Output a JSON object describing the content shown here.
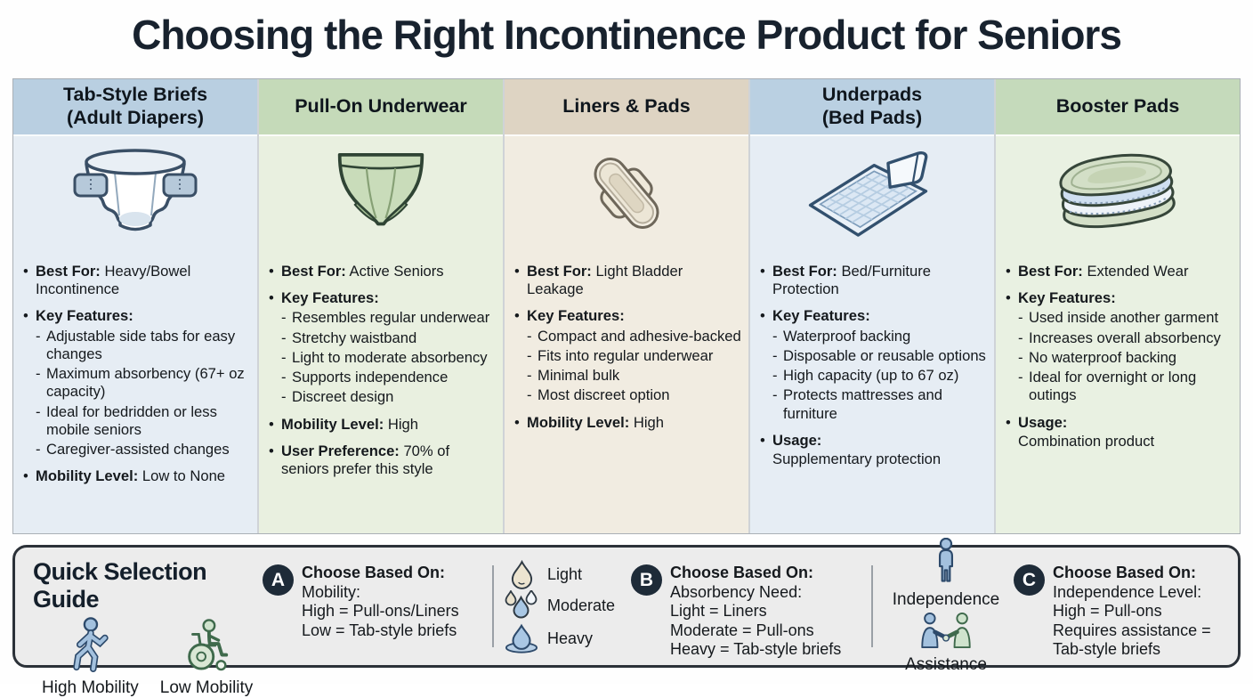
{
  "title": "Choosing the Right Incontinence Product for Seniors",
  "columns": [
    {
      "id": "tab-style-briefs",
      "header_line1": "Tab-Style Briefs",
      "header_line2": "(Adult Diapers)",
      "icon": "adult-diaper-icon",
      "header_color": "#b9cfe1",
      "body_color": "#e6edf4",
      "blocks": [
        {
          "type": "bullet",
          "label": "Best For:",
          "text": "Heavy/Bowel Incontinence"
        },
        {
          "type": "bullet",
          "label": "Key Features:",
          "text": ""
        },
        {
          "type": "dash",
          "text": "Adjustable side tabs for easy changes"
        },
        {
          "type": "dash",
          "text": "Maximum absorbency (67+ oz capacity)"
        },
        {
          "type": "dash",
          "text": "Ideal for bedridden or less mobile seniors"
        },
        {
          "type": "dash",
          "text": "Caregiver-assisted changes"
        },
        {
          "type": "bullet",
          "label": "Mobility Level:",
          "text": "Low to None"
        }
      ]
    },
    {
      "id": "pull-on-underwear",
      "header_line1": "Pull-On Underwear",
      "header_line2": "",
      "icon": "pull-on-underwear-icon",
      "header_color": "#c5dab9",
      "body_color": "#e9f0e0",
      "blocks": [
        {
          "type": "bullet",
          "label": "Best For:",
          "text": "Active Seniors"
        },
        {
          "type": "bullet",
          "label": "Key Features:",
          "text": ""
        },
        {
          "type": "dash",
          "text": "Resembles regular underwear"
        },
        {
          "type": "dash",
          "text": "Stretchy waistband"
        },
        {
          "type": "dash",
          "text": "Light to moderate absorbency"
        },
        {
          "type": "dash",
          "text": "Supports independence"
        },
        {
          "type": "dash",
          "text": "Discreet design"
        },
        {
          "type": "bullet",
          "label": "Mobility Level:",
          "text": "High"
        },
        {
          "type": "bullet",
          "label": "User Preference:",
          "text": "70% of seniors prefer this style"
        }
      ]
    },
    {
      "id": "liners-pads",
      "header_line1": "Liners & Pads",
      "header_line2": "",
      "icon": "liner-pad-icon",
      "header_color": "#ded4c3",
      "body_color": "#f1ece1",
      "blocks": [
        {
          "type": "bullet",
          "label": "Best For:",
          "text": "Light Bladder Leakage"
        },
        {
          "type": "bullet",
          "label": "Key Features:",
          "text": ""
        },
        {
          "type": "dash",
          "text": "Compact and adhesive-backed"
        },
        {
          "type": "dash",
          "text": "Fits into regular underwear"
        },
        {
          "type": "dash",
          "text": "Minimal bulk"
        },
        {
          "type": "dash",
          "text": "Most discreet option"
        },
        {
          "type": "bullet",
          "label": "Mobility Level:",
          "text": "High"
        }
      ]
    },
    {
      "id": "underpads",
      "header_line1": "Underpads",
      "header_line2": "(Bed Pads)",
      "icon": "underpad-icon",
      "header_color": "#bad0e2",
      "body_color": "#e6edf4",
      "blocks": [
        {
          "type": "bullet",
          "label": "Best For:",
          "text": "Bed/Furniture Protection"
        },
        {
          "type": "bullet",
          "label": "Key Features:",
          "text": ""
        },
        {
          "type": "dash",
          "text": "Waterproof backing"
        },
        {
          "type": "dash",
          "text": "Disposable or reusable options"
        },
        {
          "type": "dash",
          "text": "High capacity (up to 67 oz)"
        },
        {
          "type": "dash",
          "text": "Protects mattresses and furniture"
        },
        {
          "type": "bullet",
          "label": "Usage:",
          "text": "",
          "below": "Supplementary protection"
        }
      ]
    },
    {
      "id": "booster-pads",
      "header_line1": "Booster Pads",
      "header_line2": "",
      "icon": "booster-pads-icon",
      "header_color": "#c5dabb",
      "body_color": "#e9f1e2",
      "blocks": [
        {
          "type": "bullet",
          "label": "Best For:",
          "text": "Extended Wear"
        },
        {
          "type": "bullet",
          "label": "Key Features:",
          "text": ""
        },
        {
          "type": "dash",
          "text": "Used inside another garment"
        },
        {
          "type": "dash",
          "text": "Increases overall absorbency"
        },
        {
          "type": "dash",
          "text": "No waterproof backing"
        },
        {
          "type": "dash",
          "text": "Ideal for overnight or long outings"
        },
        {
          "type": "bullet",
          "label": "Usage:",
          "text": "",
          "below": "Combination product"
        }
      ]
    }
  ],
  "guide": {
    "title": "Quick Selection Guide",
    "mobility_legend": [
      {
        "icon": "walking-person-icon",
        "label": "High Mobility"
      },
      {
        "icon": "wheelchair-icon",
        "label": "Low Mobility"
      }
    ],
    "absorbency_legend": [
      {
        "icon": "light-droplet-icon",
        "label": "Light"
      },
      {
        "icon": "moderate-droplets-icon",
        "label": "Moderate"
      },
      {
        "icon": "heavy-droplet-icon",
        "label": "Heavy"
      }
    ],
    "independence_legend": [
      {
        "icon": "standing-person-icon",
        "label": "Independence"
      },
      {
        "icon": "handshake-icon",
        "label": "Assistance"
      }
    ],
    "sections": [
      {
        "badge": "A",
        "heading": "Choose Based On:",
        "lines": [
          "Mobility:",
          "High = Pull-ons/Liners",
          "Low = Tab-style briefs"
        ]
      },
      {
        "badge": "B",
        "heading": "Choose Based On:",
        "lines": [
          "Absorbency Need:",
          "Light = Liners",
          "Moderate = Pull-ons",
          "Heavy = Tab-style briefs"
        ]
      },
      {
        "badge": "C",
        "heading": "Choose Based On:",
        "lines": [
          "Independence Level:",
          "High = Pull-ons",
          "Requires assistance =",
          "Tab-style briefs"
        ]
      }
    ]
  },
  "colors": {
    "title_text": "#18222e",
    "badge_bg": "#1e2b38",
    "badge_text": "#ffffff",
    "guide_bg": "#ececec",
    "guide_border": "#2b3138",
    "accent_blue": "#a3c1de",
    "accent_green": "#cfe3cd"
  }
}
